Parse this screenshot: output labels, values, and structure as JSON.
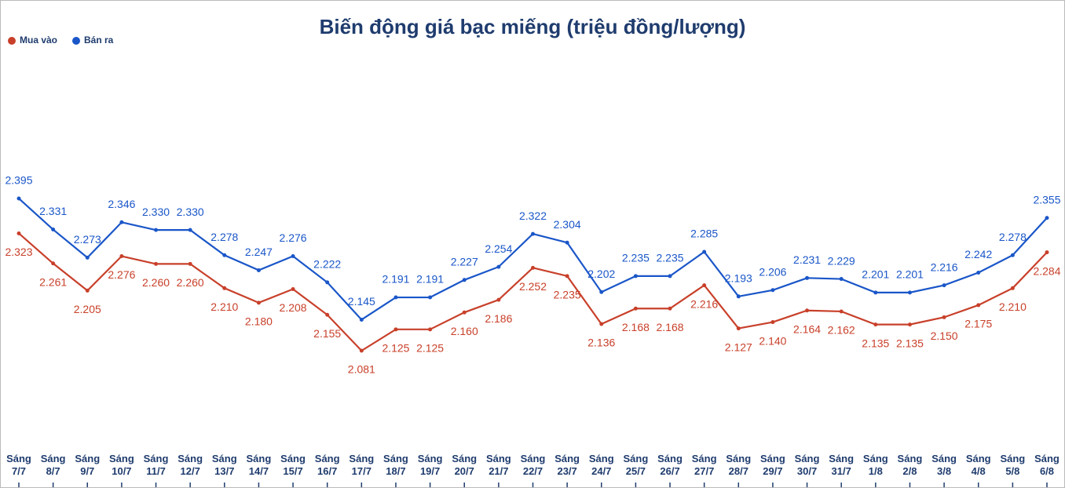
{
  "chart_data": {
    "type": "line",
    "title": "Biến động giá bạc miếng (triệu đồng/lượng)",
    "categories": [
      "Sáng 7/7",
      "Sáng 8/7",
      "Sáng 9/7",
      "Sáng 10/7",
      "Sáng 11/7",
      "Sáng 12/7",
      "Sáng 13/7",
      "Sáng 14/7",
      "Sáng 15/7",
      "Sáng 16/7",
      "Sáng 17/7",
      "Sáng 18/7",
      "Sáng 19/7",
      "Sáng 20/7",
      "Sáng 21/7",
      "Sáng 22/7",
      "Sáng 23/7",
      "Sáng 24/7",
      "Sáng 25/7",
      "Sáng 26/7",
      "Sáng 27/7",
      "Sáng 28/7",
      "Sáng 29/7",
      "Sáng 30/7",
      "Sáng 31/7",
      "Sáng 1/8",
      "Sáng 2/8",
      "Sáng 3/8",
      "Sáng 4/8",
      "Sáng 5/8",
      "Sáng 6/8"
    ],
    "series": [
      {
        "name": "Mua vào",
        "color": "#c8402a",
        "values": [
          2.323,
          2.261,
          2.205,
          2.276,
          2.26,
          2.26,
          2.21,
          2.18,
          2.208,
          2.155,
          2.081,
          2.125,
          2.125,
          2.16,
          2.186,
          2.252,
          2.235,
          2.136,
          2.168,
          2.168,
          2.216,
          2.127,
          2.14,
          2.164,
          2.162,
          2.135,
          2.135,
          2.15,
          2.175,
          2.21,
          2.284
        ],
        "value_labels": [
          "2.323",
          "2.261",
          "2.205",
          "2.276",
          "2.260",
          "2.260",
          "2.210",
          "2.180",
          "2.208",
          "2.155",
          "2.081",
          "2.125",
          "2.125",
          "2.160",
          "2.186",
          "2.252",
          "2.235",
          "2.136",
          "2.168",
          "2.168",
          "2.216",
          "2.127",
          "2.140",
          "2.164",
          "2.162",
          "2.135",
          "2.135",
          "2.150",
          "2.175",
          "2.210",
          "2.284"
        ]
      },
      {
        "name": "Bán ra",
        "color": "#1a56c8",
        "values": [
          2.395,
          2.331,
          2.273,
          2.346,
          2.33,
          2.33,
          2.278,
          2.247,
          2.276,
          2.222,
          2.145,
          2.191,
          2.191,
          2.227,
          2.254,
          2.322,
          2.304,
          2.202,
          2.235,
          2.235,
          2.285,
          2.193,
          2.206,
          2.231,
          2.229,
          2.201,
          2.201,
          2.216,
          2.242,
          2.278,
          2.355
        ],
        "value_labels": [
          "2.395",
          "2.331",
          "2.273",
          "2.346",
          "2.330",
          "2.330",
          "2.278",
          "2.247",
          "2.276",
          "2.222",
          "2.145",
          "2.191",
          "2.191",
          "2.227",
          "2.254",
          "2.322",
          "2.304",
          "2.202",
          "2.235",
          "2.235",
          "2.285",
          "2.193",
          "2.206",
          "2.231",
          "2.229",
          "2.201",
          "2.201",
          "2.216",
          "2.242",
          "2.278",
          "2.355"
        ]
      }
    ],
    "legend": "top-left"
  }
}
